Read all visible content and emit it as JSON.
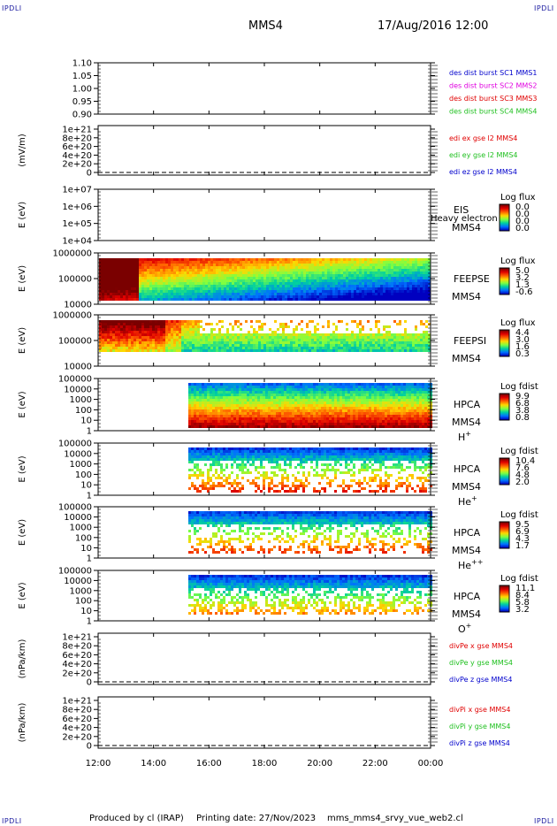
{
  "corner_label": "IPDLI",
  "header": {
    "spacecraft": "MMS4",
    "datetime": "17/Aug/2016 12:00"
  },
  "footer": {
    "produced_by": "Produced by cl (IRAP)",
    "printing_date": "Printing date: 27/Nov/2023",
    "script": "mms_mms4_srvy_vue_web2.cl"
  },
  "colors": {
    "scale": [
      "#7a0000",
      "#e00000",
      "#ff6000",
      "#ffd800",
      "#80ff40",
      "#00d0a0",
      "#0070ff",
      "#0000c0"
    ],
    "red": "#e00000",
    "magenta": "#e000e0",
    "green": "#20c020",
    "blue": "#0000cc"
  },
  "chart_data": [
    {
      "id": "ratio",
      "type": "line",
      "ylim": [
        0.9,
        1.1
      ],
      "yticks": [
        "1.10",
        "1.05",
        "1.00",
        "0.95",
        "0.90"
      ],
      "legend": [
        {
          "label": "des dist burst SC1 MMS1",
          "color": "blue"
        },
        {
          "label": "des dist burst SC2 MMS2",
          "color": "magenta"
        },
        {
          "label": "des dist burst SC3 MMS3",
          "color": "red"
        },
        {
          "label": "des dist burst SC4 MMS4",
          "color": "green"
        }
      ]
    },
    {
      "id": "edi",
      "type": "line",
      "ylabel": "(mV/m)",
      "yticks": [
        "1e+21",
        "8e+20",
        "6e+20",
        "4e+20",
        "2e+20",
        "0"
      ],
      "legend": [
        {
          "label": "edi ex gse l2 MMS4",
          "color": "red"
        },
        {
          "label": "edi ey gse l2 MMS4",
          "color": "green"
        },
        {
          "label": "edi ez gse l2 MMS4",
          "color": "blue"
        }
      ]
    },
    {
      "id": "eis",
      "type": "heatmap",
      "ylabel": "E (eV)",
      "yticks": [
        "1e+07",
        "1e+06",
        "1e+05",
        "1e+04"
      ],
      "name": "EIS",
      "overlay": "Heavy electron to",
      "sc": "MMS4",
      "cb_title": "Log flux",
      "cb_ticks": [
        "0.0",
        "0.0",
        "0.0",
        "0.0"
      ]
    },
    {
      "id": "feepse",
      "type": "heatmap",
      "ylabel": "E (eV)",
      "yticks": [
        "1000000",
        "100000",
        "10000"
      ],
      "name": "FEEPSE",
      "sc": "MMS4",
      "cb_title": "Log flux",
      "cb_ticks": [
        "5.0",
        "3.2",
        "1.3",
        "-0.6"
      ]
    },
    {
      "id": "feepsi",
      "type": "heatmap",
      "ylabel": "E (eV)",
      "yticks": [
        "1000000",
        "100000",
        "10000"
      ],
      "name": "FEEPSI",
      "sc": "MMS4",
      "cb_title": "Log flux",
      "cb_ticks": [
        "4.4",
        "3.0",
        "1.6",
        "0.3"
      ]
    },
    {
      "id": "hpca_h",
      "type": "heatmap",
      "ylabel": "E (eV)",
      "yticks": [
        "100000",
        "10000",
        "1000",
        "100",
        "10",
        "1"
      ],
      "name": "HPCA",
      "sc": "MMS4",
      "species": "H",
      "charge": "+",
      "cb_title": "Log fdist",
      "cb_ticks": [
        "9.9",
        "6.8",
        "3.8",
        "0.8"
      ]
    },
    {
      "id": "hpca_he",
      "type": "heatmap",
      "ylabel": "E (eV)",
      "yticks": [
        "100000",
        "10000",
        "1000",
        "100",
        "10",
        "1"
      ],
      "name": "HPCA",
      "sc": "MMS4",
      "species": "He",
      "charge": "+",
      "cb_title": "Log fdist",
      "cb_ticks": [
        "10.4",
        "7.6",
        "4.8",
        "2.0"
      ]
    },
    {
      "id": "hpca_hepp",
      "type": "heatmap",
      "ylabel": "E (eV)",
      "yticks": [
        "100000",
        "10000",
        "1000",
        "100",
        "10",
        "1"
      ],
      "name": "HPCA",
      "sc": "MMS4",
      "species": "He",
      "charge": "++",
      "cb_title": "Log fdist",
      "cb_ticks": [
        "9.5",
        "6.9",
        "4.3",
        "1.7"
      ]
    },
    {
      "id": "hpca_o",
      "type": "heatmap",
      "ylabel": "E (eV)",
      "yticks": [
        "100000",
        "10000",
        "1000",
        "100",
        "10",
        "1"
      ],
      "name": "HPCA",
      "sc": "MMS4",
      "species": "O",
      "charge": "+",
      "cb_title": "Log fdist",
      "cb_ticks": [
        "11.1",
        "8.4",
        "5.8",
        "3.2"
      ]
    },
    {
      "id": "divpe",
      "type": "line",
      "ylabel": "(nPa/km)",
      "yticks": [
        "1e+21",
        "8e+20",
        "6e+20",
        "4e+20",
        "2e+20",
        "0"
      ],
      "legend": [
        {
          "label": "divPe x gse MMS4",
          "color": "red"
        },
        {
          "label": "divPe y gse MMS4",
          "color": "green"
        },
        {
          "label": "divPe z gse MMS4",
          "color": "blue"
        }
      ]
    },
    {
      "id": "divpi",
      "type": "line",
      "ylabel": "(nPa/km)",
      "yticks": [
        "1e+21",
        "8e+20",
        "6e+20",
        "4e+20",
        "2e+20",
        "0"
      ],
      "legend": [
        {
          "label": "divPi x gse MMS4",
          "color": "red"
        },
        {
          "label": "divPi y gse MMS4",
          "color": "green"
        },
        {
          "label": "divPi z gse MMS4",
          "color": "blue"
        }
      ]
    }
  ],
  "x_axis": {
    "ticks": [
      "12:00",
      "14:00",
      "16:00",
      "18:00",
      "20:00",
      "22:00",
      "00:00"
    ]
  }
}
